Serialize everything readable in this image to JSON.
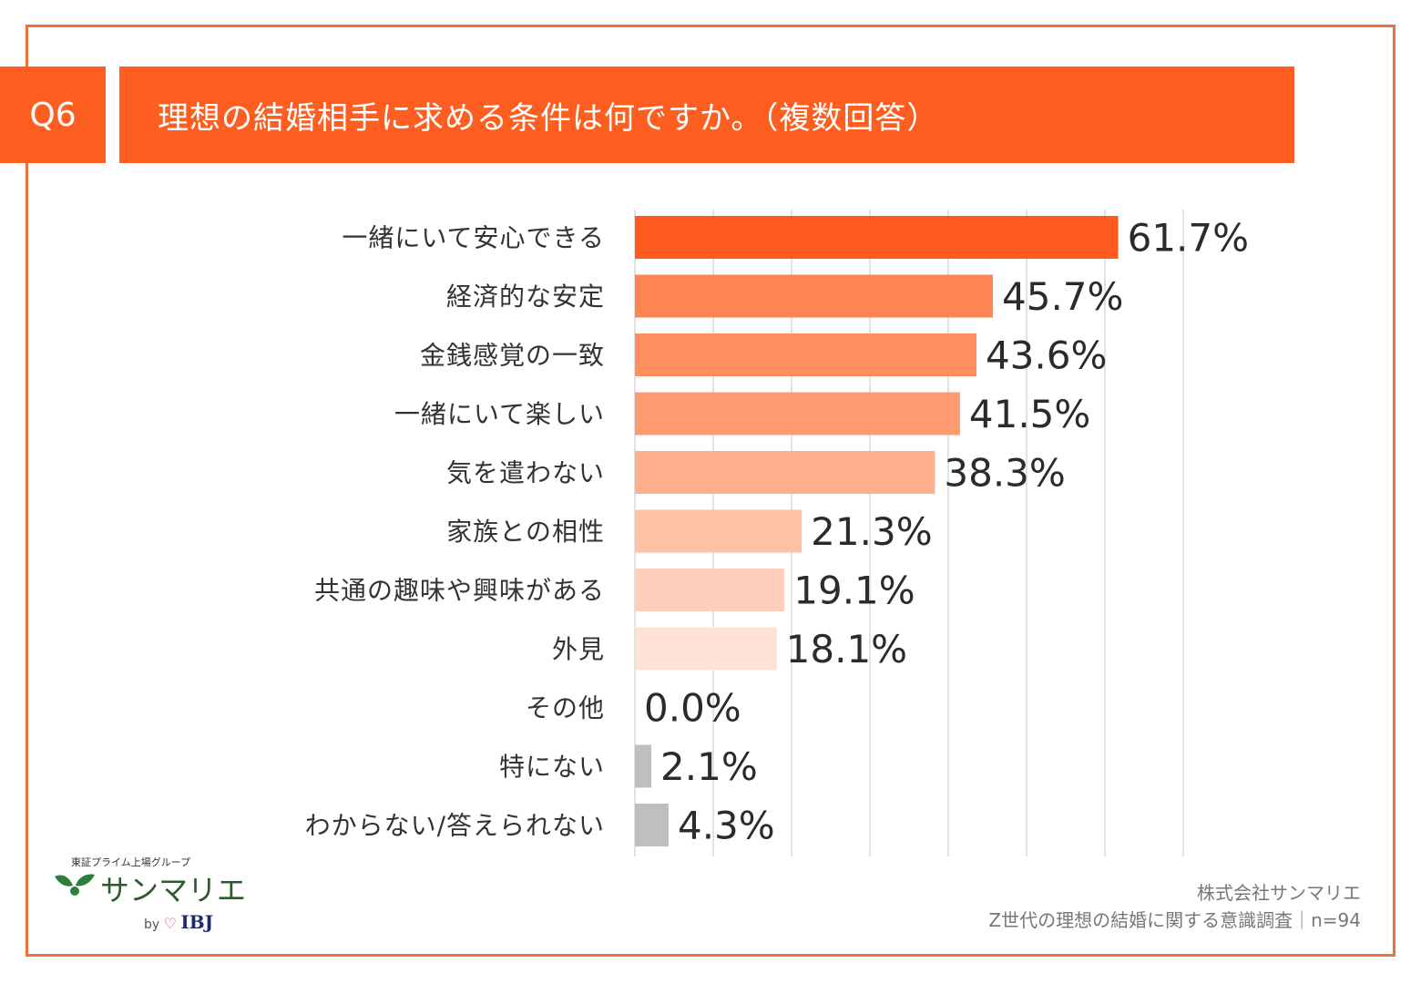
{
  "question": {
    "badge": "Q6",
    "title": "理想の結婚相手に求める条件は何ですか。（複数回答）"
  },
  "chart_data": {
    "type": "bar",
    "orientation": "horizontal",
    "categories": [
      "一緒にいて安心できる",
      "経済的な安定",
      "金銭感覚の一致",
      "一緒にいて楽しい",
      "気を遣わない",
      "家族との相性",
      "共通の趣味や興味がある",
      "外見",
      "その他",
      "特にない",
      "わからない/答えられない"
    ],
    "values": [
      61.7,
      45.7,
      43.6,
      41.5,
      38.3,
      21.3,
      19.1,
      18.1,
      0.0,
      2.1,
      4.3
    ],
    "value_labels": [
      "61.7%",
      "45.7%",
      "43.6%",
      "41.5%",
      "38.3%",
      "21.3%",
      "19.1%",
      "18.1%",
      "0.0%",
      "2.1%",
      "4.3%"
    ],
    "colors": [
      "#fe5a1e",
      "#fe8552",
      "#fe8e5e",
      "#fe9a6f",
      "#feaf8d",
      "#fec1a6",
      "#fed0bc",
      "#fee2d6",
      "#bfbfbf",
      "#bfbfbf",
      "#bfbfbf"
    ],
    "xlim": [
      0,
      70
    ],
    "grid": true,
    "grid_step": 10
  },
  "logo": {
    "tagline": "東証プライム上場グループ",
    "name": "サンマリエ",
    "by": "by",
    "partner": "IBJ"
  },
  "credit": {
    "company": "株式会社サンマリエ",
    "survey": "Z世代の理想の結婚に関する意識調査｜n=94"
  }
}
